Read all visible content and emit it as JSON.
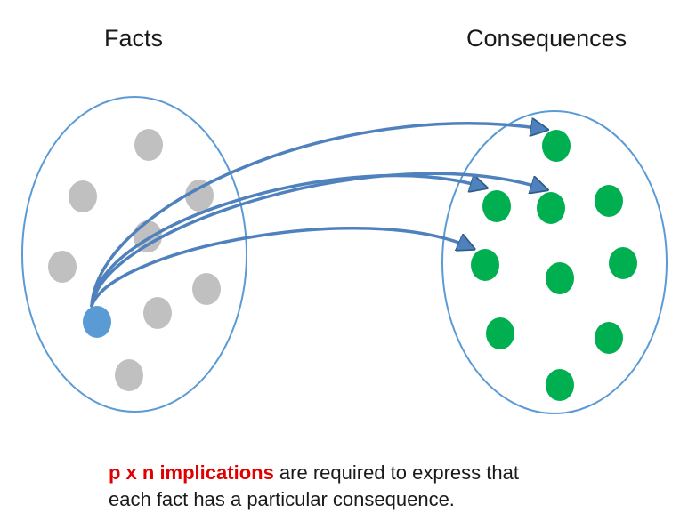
{
  "headings": {
    "facts": "Facts",
    "consequences": "Consequences"
  },
  "caption": {
    "highlight": "p x n implications",
    "rest_line1": " are required to express that",
    "line2": "each fact has a particular consequence."
  },
  "colors": {
    "ellipse_stroke": "#5b9bd5",
    "fact_dot": "#c0c0c0",
    "selected_fact_dot": "#5b9bd5",
    "consequence_dot": "#00b050",
    "arrow_fill": "#4f81bd",
    "arrow_stroke": "#2e5c8a",
    "highlight_text": "#e00000"
  }
}
